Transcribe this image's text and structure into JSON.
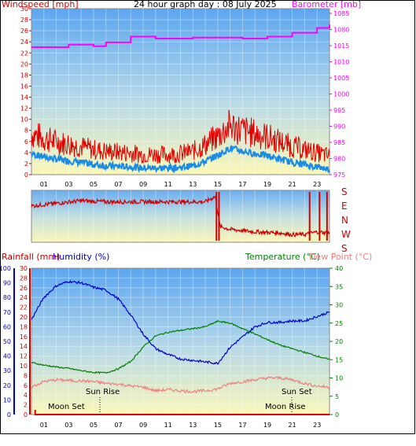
{
  "colors": {
    "wind": "#e00000",
    "gust": "#e00000",
    "wind_avg": "#1a8ce6",
    "barometer": "#ff00ff",
    "direction": "#d00000",
    "rain": "#e00000",
    "humidity": "#0000c8",
    "temperature": "#008000",
    "dewpoint": "#f08080",
    "moon": "#000000"
  },
  "panel_top": {
    "title": "24 hour graph day : 08 July 2025",
    "left_label": "Windspeed [mph]",
    "right_label": "Barometer [mb]",
    "left_ticks": [
      "30",
      "28",
      "26",
      "24",
      "22",
      "20",
      "18",
      "16",
      "14",
      "12",
      "10",
      "8",
      "6",
      "4",
      "2",
      "0"
    ],
    "right_ticks": [
      "1085",
      "1080",
      "1015",
      "1010",
      "1005",
      "1000",
      "995",
      "990",
      "985",
      "980",
      "975"
    ]
  },
  "panel_mid": {
    "direction_labels": [
      "S",
      "E",
      "N",
      "W",
      "S"
    ]
  },
  "panel_bottom": {
    "rain_label": "Rainfall (mm)",
    "humidity_label": "Humidity (%)",
    "temp_label": "Temperature (°C)",
    "dew_label": "Dew Point (°C)",
    "humidity_ticks": [
      "100",
      "90",
      "80",
      "70",
      "60",
      "50",
      "40",
      "30",
      "20",
      "10",
      "0"
    ],
    "rain_ticks": [
      "30",
      "28",
      "26",
      "24",
      "22",
      "20",
      "18",
      "16",
      "14",
      "12",
      "10",
      "8",
      "6",
      "4",
      "2",
      "0"
    ],
    "temp_ticks": [
      "40",
      "35",
      "30",
      "25",
      "20",
      "15",
      "10",
      "5",
      "0"
    ],
    "annotations": {
      "sun_rise": "Sun Rise",
      "sun_set": "Sun Set",
      "moon_set": "Moon Set",
      "moon_rise": "Moon Rise"
    }
  },
  "x_ticks": [
    "01",
    "03",
    "05",
    "07",
    "09",
    "11",
    "13",
    "15",
    "17",
    "19",
    "21",
    "23"
  ],
  "chart_data": [
    {
      "type": "line",
      "title": "24 hour graph day : 08 July 2025",
      "x_unit": "hour",
      "series": [
        {
          "name": "Windspeed [mph]",
          "axis": "left",
          "x": [
            0,
            1,
            2,
            3,
            4,
            5,
            6,
            7,
            8,
            9,
            10,
            11,
            12,
            13,
            14,
            15,
            16,
            17,
            18,
            19,
            20,
            21,
            22,
            23,
            24
          ],
          "values": [
            3.8,
            3.2,
            2.8,
            2.5,
            2.2,
            1.8,
            1.6,
            1.5,
            1.4,
            1.2,
            1.2,
            1.2,
            1.3,
            1.6,
            2.4,
            3.5,
            4.8,
            4.2,
            3.8,
            3.4,
            2.8,
            2.2,
            1.8,
            1.4,
            1.0
          ]
        },
        {
          "name": "Barometer [mb]",
          "axis": "right",
          "x": [
            0,
            3,
            5,
            6,
            8,
            10,
            11,
            13,
            16,
            17,
            19,
            21,
            23,
            24
          ],
          "values": [
            1014.5,
            1015.3,
            1014.8,
            1016.0,
            1017.8,
            1017.2,
            1017.2,
            1017.5,
            1017.5,
            1017.2,
            1017.8,
            1019.0,
            1020.5,
            1021.5
          ]
        }
      ],
      "ylim_left": [
        0,
        30
      ],
      "ylim_right": [
        975,
        1085
      ]
    },
    {
      "type": "line",
      "series": [
        {
          "name": "Wind direction",
          "x": [
            0,
            2,
            4,
            6,
            8,
            10,
            12,
            14,
            14.8,
            15.2,
            16,
            18,
            20,
            21,
            22,
            23,
            24
          ],
          "values": [
            70,
            75,
            80,
            78,
            78,
            78,
            78,
            78,
            88,
            30,
            25,
            20,
            18,
            15,
            15,
            20,
            18
          ]
        }
      ],
      "ylim": [
        0,
        100
      ]
    },
    {
      "type": "line",
      "x_unit": "hour",
      "series": [
        {
          "name": "Humidity (%)",
          "axis": "left",
          "x": [
            0,
            1,
            2,
            3,
            4,
            5,
            6,
            7,
            8,
            9,
            10,
            11,
            12,
            13,
            14,
            15,
            16,
            17,
            18,
            19,
            20,
            21,
            22,
            23,
            24
          ],
          "values": [
            65,
            80,
            88,
            91,
            90,
            87,
            85,
            79,
            68,
            55,
            45,
            41,
            38,
            37,
            36,
            35,
            46,
            53,
            60,
            63,
            63,
            64,
            64,
            67,
            70
          ]
        },
        {
          "name": "Rainfall (mm)",
          "axis": "left",
          "x": [
            0,
            0.3,
            0.3,
            24
          ],
          "values": [
            0,
            0,
            0.5,
            0
          ]
        },
        {
          "name": "Temperature (°C)",
          "axis": "right",
          "x": [
            0,
            1,
            2,
            3,
            4,
            5,
            6,
            7,
            8,
            9,
            10,
            11,
            12,
            13,
            14,
            15,
            16,
            17,
            18,
            19,
            20,
            21,
            22,
            23,
            24
          ],
          "values": [
            14.2,
            13.5,
            13.0,
            12.6,
            12.0,
            11.5,
            11.4,
            12.5,
            14.5,
            18.5,
            21.5,
            22.5,
            23.0,
            23.5,
            24.0,
            25.5,
            25.0,
            23.5,
            22.0,
            20.5,
            19.0,
            18.0,
            17.0,
            16.0,
            15.0
          ]
        },
        {
          "name": "Dew Point (°C)",
          "axis": "right",
          "x": [
            0,
            1,
            2,
            3,
            4,
            5,
            6,
            7,
            8,
            9,
            10,
            11,
            12,
            13,
            14,
            15,
            16,
            17,
            18,
            19,
            20,
            21,
            22,
            23,
            24
          ],
          "values": [
            7.5,
            9.0,
            9.5,
            9.3,
            9.2,
            9.0,
            8.5,
            8.3,
            7.8,
            7.5,
            6.5,
            6.8,
            6.5,
            6.3,
            6.5,
            7.0,
            8.5,
            9.0,
            9.5,
            10.0,
            10.0,
            9.5,
            8.5,
            7.8,
            7.5
          ]
        }
      ],
      "ylim_left": [
        0,
        100
      ],
      "ylim_right": [
        0,
        40
      ]
    }
  ]
}
